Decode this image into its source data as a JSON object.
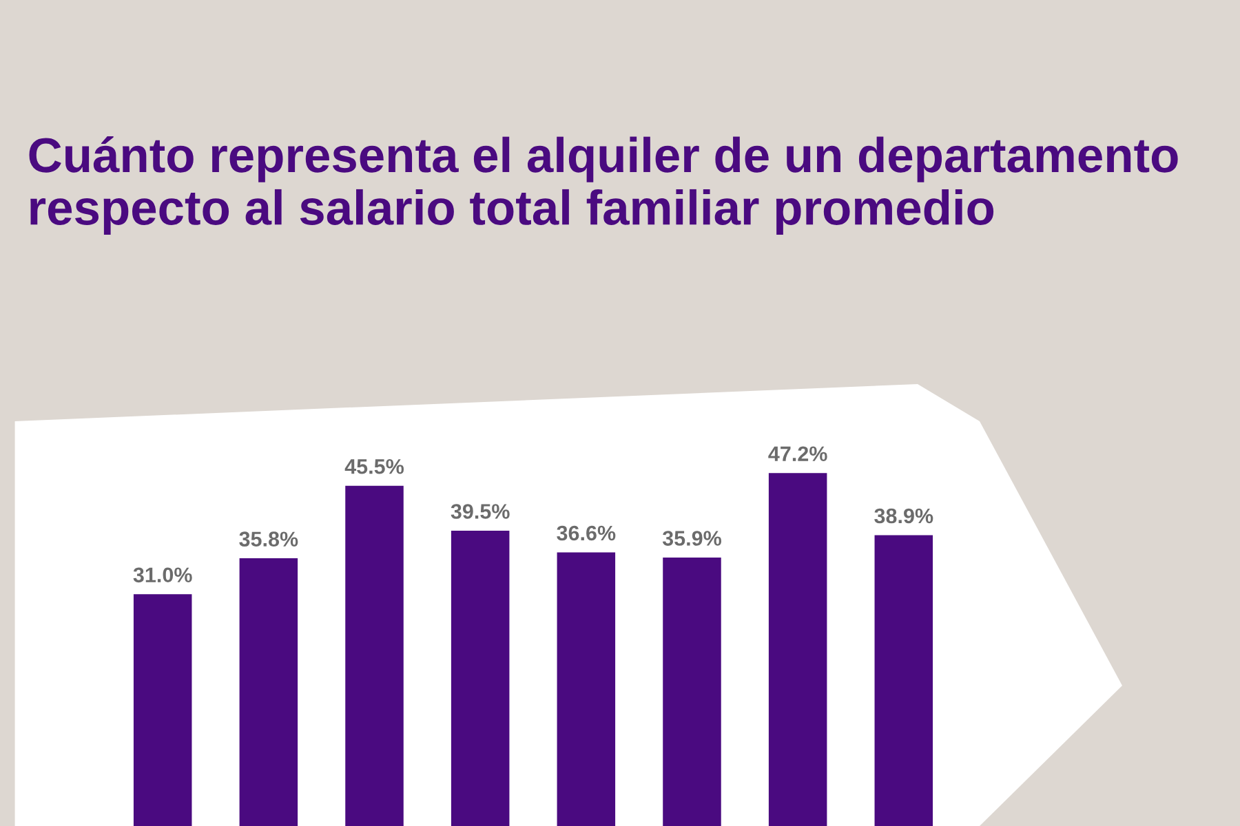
{
  "chart_data": {
    "type": "bar",
    "title": "Cuánto representa el alquiler de un departamento respecto al salario total familiar promedio",
    "categories": [
      null,
      null,
      null,
      null,
      null,
      null,
      null,
      null
    ],
    "values": [
      31.0,
      35.8,
      45.5,
      39.5,
      36.6,
      35.9,
      47.2,
      38.9
    ],
    "value_labels": [
      "31.0%",
      "35.8%",
      "45.5%",
      "39.5%",
      "36.6%",
      "35.9%",
      "47.2%",
      "38.9%"
    ],
    "color": "#4a0a80",
    "grid": false,
    "legend": false
  }
}
